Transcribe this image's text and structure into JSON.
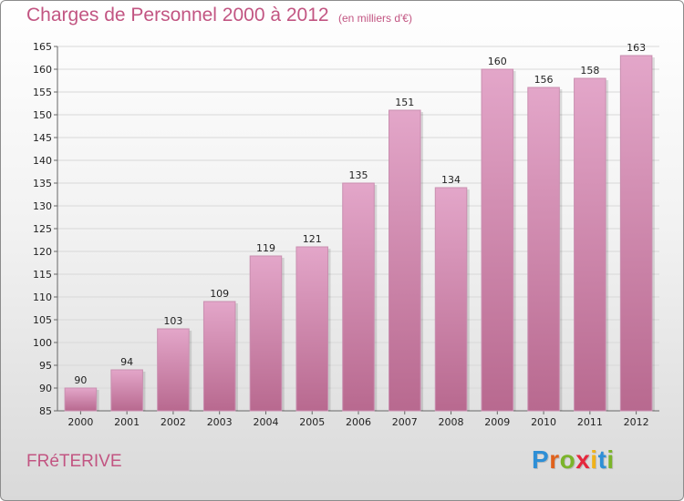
{
  "header": {
    "title": "Charges de Personnel 2000 à 2012",
    "subtitle": "(en milliers d'€)"
  },
  "footer": {
    "commune": "FRéTERIVE",
    "logo_letters": [
      "P",
      "r",
      "o",
      "x",
      "i",
      "t",
      "i"
    ],
    "logo_colors": [
      "#2e8fd6",
      "#e0611b",
      "#7bb42a",
      "#e5283d",
      "#f0b21a",
      "#2e8fd6",
      "#7bb42a"
    ]
  },
  "chart_data": {
    "type": "bar",
    "title": "Charges de Personnel 2000 à 2012",
    "subtitle": "(en milliers d'€)",
    "categories": [
      "2000",
      "2001",
      "2002",
      "2003",
      "2004",
      "2005",
      "2006",
      "2007",
      "2008",
      "2009",
      "2010",
      "2011",
      "2012"
    ],
    "values": [
      90,
      94,
      103,
      109,
      119,
      121,
      135,
      151,
      134,
      160,
      156,
      158,
      163
    ],
    "ylim": [
      85,
      165
    ],
    "yticks": [
      85,
      90,
      95,
      100,
      105,
      110,
      115,
      120,
      125,
      130,
      135,
      140,
      145,
      150,
      155,
      160,
      165
    ],
    "grid": true,
    "legend": "none",
    "colors": {
      "bar_light": "#e3a6c9",
      "bar_dark": "#b8698f",
      "accent": "#c25582",
      "grid": "#d8d8d8"
    }
  }
}
